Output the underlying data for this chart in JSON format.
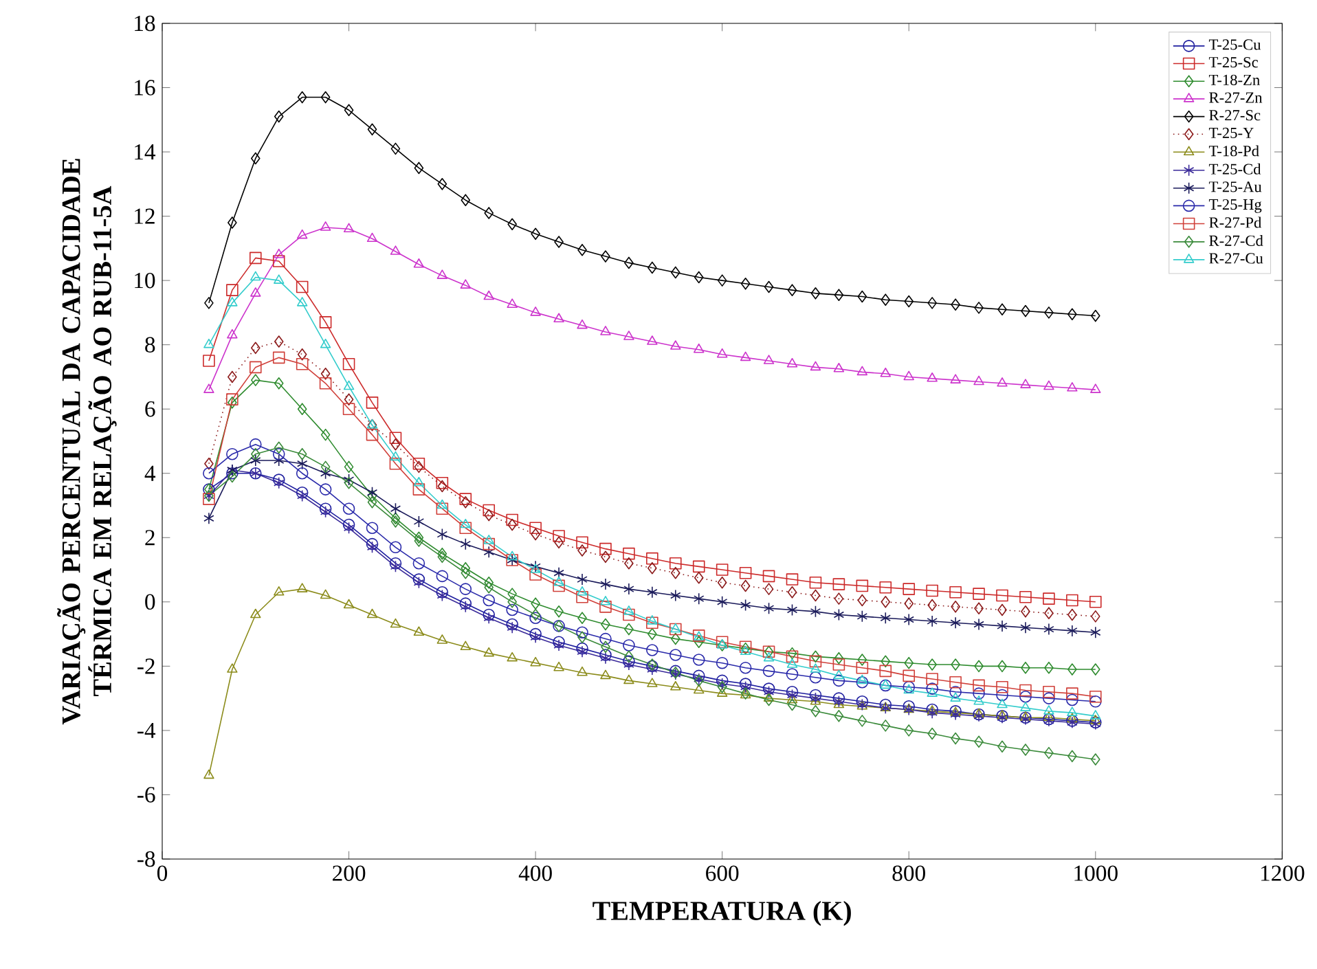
{
  "chart_data": {
    "type": "line",
    "xlabel": "TEMPERATURA (K)",
    "ylabel": "VARIAÇÃO PERCENTUAL DA CAPACIDADE TÉRMICA EM RELAÇÃO AO RUB-11-5A",
    "xlim": [
      0,
      1200
    ],
    "ylim": [
      -8,
      18
    ],
    "xticks": [
      0,
      200,
      400,
      600,
      800,
      1000,
      1200
    ],
    "yticks": [
      -8,
      -6,
      -4,
      -2,
      0,
      2,
      4,
      6,
      8,
      10,
      12,
      14,
      16,
      18
    ],
    "grid": false,
    "legend": "top right",
    "x": [
      50,
      75,
      100,
      125,
      150,
      175,
      200,
      225,
      250,
      275,
      300,
      325,
      350,
      375,
      400,
      425,
      450,
      475,
      500,
      525,
      550,
      575,
      600,
      625,
      650,
      675,
      700,
      725,
      750,
      775,
      800,
      825,
      850,
      875,
      900,
      925,
      950,
      975,
      1000
    ],
    "series": [
      {
        "name": "T-25-Cu",
        "color": "#1f1f9f",
        "marker": "circle",
        "values": [
          3.5,
          4.0,
          4.0,
          3.8,
          3.4,
          2.9,
          2.4,
          1.8,
          1.2,
          0.7,
          0.3,
          -0.05,
          -0.4,
          -0.7,
          -1.0,
          -1.25,
          -1.45,
          -1.65,
          -1.85,
          -2.0,
          -2.15,
          -2.3,
          -2.45,
          -2.55,
          -2.7,
          -2.8,
          -2.9,
          -3.0,
          -3.1,
          -3.2,
          -3.25,
          -3.35,
          -3.4,
          -3.5,
          -3.55,
          -3.6,
          -3.65,
          -3.7,
          -3.75
        ]
      },
      {
        "name": "T-25-Sc",
        "color": "#cc2a2a",
        "marker": "square",
        "values": [
          7.5,
          9.7,
          10.7,
          10.6,
          9.8,
          8.7,
          7.4,
          6.2,
          5.1,
          4.3,
          3.7,
          3.2,
          2.85,
          2.55,
          2.3,
          2.05,
          1.85,
          1.65,
          1.5,
          1.35,
          1.2,
          1.1,
          1.0,
          0.9,
          0.8,
          0.7,
          0.6,
          0.55,
          0.5,
          0.45,
          0.4,
          0.35,
          0.3,
          0.25,
          0.2,
          0.15,
          0.1,
          0.05,
          0.0
        ]
      },
      {
        "name": "T-18-Zn",
        "color": "#2e8b2e",
        "marker": "diamond",
        "values": [
          3.5,
          6.2,
          6.9,
          6.8,
          6.0,
          5.2,
          4.2,
          3.3,
          2.6,
          2.0,
          1.5,
          1.05,
          0.6,
          0.25,
          -0.05,
          -0.3,
          -0.5,
          -0.7,
          -0.85,
          -1.0,
          -1.15,
          -1.25,
          -1.35,
          -1.45,
          -1.55,
          -1.6,
          -1.7,
          -1.75,
          -1.8,
          -1.85,
          -1.9,
          -1.95,
          -1.95,
          -2.0,
          -2.0,
          -2.05,
          -2.05,
          -2.1,
          -2.1
        ]
      },
      {
        "name": "R-27-Zn",
        "color": "#cc33cc",
        "marker": "triangle",
        "values": [
          6.6,
          8.3,
          9.6,
          10.8,
          11.4,
          11.65,
          11.6,
          11.3,
          10.9,
          10.5,
          10.15,
          9.85,
          9.5,
          9.25,
          9.0,
          8.8,
          8.6,
          8.4,
          8.25,
          8.1,
          7.95,
          7.85,
          7.7,
          7.6,
          7.5,
          7.4,
          7.3,
          7.25,
          7.15,
          7.1,
          7.0,
          6.95,
          6.9,
          6.85,
          6.8,
          6.75,
          6.7,
          6.65,
          6.6
        ]
      },
      {
        "name": "R-27-Sc",
        "color": "#000000",
        "marker": "diamond",
        "values": [
          9.3,
          11.8,
          13.8,
          15.1,
          15.7,
          15.7,
          15.3,
          14.7,
          14.1,
          13.5,
          13.0,
          12.5,
          12.1,
          11.75,
          11.45,
          11.2,
          10.95,
          10.75,
          10.55,
          10.4,
          10.25,
          10.1,
          10.0,
          9.9,
          9.8,
          9.7,
          9.6,
          9.55,
          9.5,
          9.4,
          9.35,
          9.3,
          9.25,
          9.15,
          9.1,
          9.05,
          9.0,
          8.95,
          8.9
        ]
      },
      {
        "name": "T-25-Y",
        "color": "#8b1a1a",
        "marker": "diamond",
        "line_style": "dotted",
        "values": [
          4.3,
          7.0,
          7.9,
          8.1,
          7.7,
          7.1,
          6.3,
          5.5,
          4.9,
          4.2,
          3.6,
          3.1,
          2.7,
          2.4,
          2.1,
          1.85,
          1.6,
          1.4,
          1.2,
          1.05,
          0.9,
          0.75,
          0.6,
          0.5,
          0.4,
          0.3,
          0.2,
          0.1,
          0.05,
          0.0,
          -0.05,
          -0.1,
          -0.15,
          -0.2,
          -0.25,
          -0.3,
          -0.35,
          -0.4,
          -0.45
        ]
      },
      {
        "name": "T-18-Pd",
        "color": "#8b8b1a",
        "marker": "triangle",
        "values": [
          -5.4,
          -2.1,
          -0.4,
          0.3,
          0.4,
          0.2,
          -0.1,
          -0.4,
          -0.7,
          -0.95,
          -1.2,
          -1.4,
          -1.6,
          -1.75,
          -1.9,
          -2.05,
          -2.2,
          -2.3,
          -2.45,
          -2.55,
          -2.65,
          -2.75,
          -2.85,
          -2.9,
          -3.0,
          -3.05,
          -3.1,
          -3.2,
          -3.25,
          -3.3,
          -3.35,
          -3.4,
          -3.45,
          -3.5,
          -3.55,
          -3.6,
          -3.6,
          -3.65,
          -3.7
        ]
      },
      {
        "name": "T-25-Cd",
        "color": "#3a2a9a",
        "marker": "cross",
        "values": [
          3.3,
          4.1,
          4.0,
          3.7,
          3.3,
          2.8,
          2.3,
          1.7,
          1.1,
          0.6,
          0.2,
          -0.15,
          -0.5,
          -0.8,
          -1.1,
          -1.35,
          -1.55,
          -1.75,
          -1.95,
          -2.1,
          -2.25,
          -2.4,
          -2.55,
          -2.65,
          -2.8,
          -2.9,
          -3.0,
          -3.1,
          -3.2,
          -3.3,
          -3.35,
          -3.45,
          -3.5,
          -3.55,
          -3.6,
          -3.65,
          -3.7,
          -3.75,
          -3.8
        ]
      },
      {
        "name": "T-25-Au",
        "color": "#1a1a5a",
        "marker": "cross",
        "values": [
          2.6,
          4.1,
          4.4,
          4.4,
          4.3,
          4.0,
          3.8,
          3.4,
          2.9,
          2.5,
          2.1,
          1.8,
          1.55,
          1.3,
          1.1,
          0.9,
          0.7,
          0.55,
          0.4,
          0.3,
          0.2,
          0.1,
          0.0,
          -0.1,
          -0.2,
          -0.25,
          -0.3,
          -0.4,
          -0.45,
          -0.5,
          -0.55,
          -0.6,
          -0.65,
          -0.7,
          -0.75,
          -0.8,
          -0.85,
          -0.9,
          -0.95
        ]
      },
      {
        "name": "T-25-Hg",
        "color": "#2a2aaa",
        "marker": "circle",
        "values": [
          4.0,
          4.6,
          4.9,
          4.6,
          4.0,
          3.5,
          2.9,
          2.3,
          1.7,
          1.2,
          0.8,
          0.4,
          0.05,
          -0.25,
          -0.5,
          -0.75,
          -0.95,
          -1.15,
          -1.35,
          -1.5,
          -1.65,
          -1.8,
          -1.9,
          -2.05,
          -2.15,
          -2.25,
          -2.35,
          -2.45,
          -2.5,
          -2.6,
          -2.65,
          -2.7,
          -2.8,
          -2.85,
          -2.9,
          -2.95,
          -3.0,
          -3.05,
          -3.1
        ]
      },
      {
        "name": "R-27-Pd",
        "color": "#d0403a",
        "marker": "square",
        "values": [
          3.2,
          6.3,
          7.3,
          7.6,
          7.4,
          6.8,
          6.0,
          5.2,
          4.3,
          3.5,
          2.9,
          2.3,
          1.8,
          1.3,
          0.85,
          0.5,
          0.15,
          -0.15,
          -0.4,
          -0.65,
          -0.85,
          -1.05,
          -1.25,
          -1.4,
          -1.55,
          -1.7,
          -1.85,
          -1.95,
          -2.05,
          -2.15,
          -2.3,
          -2.4,
          -2.5,
          -2.6,
          -2.65,
          -2.75,
          -2.8,
          -2.85,
          -2.95
        ]
      },
      {
        "name": "R-27-Cd",
        "color": "#3a8a3a",
        "marker": "diamond",
        "values": [
          3.3,
          3.9,
          4.6,
          4.8,
          4.6,
          4.2,
          3.7,
          3.1,
          2.5,
          1.9,
          1.4,
          0.9,
          0.45,
          0.0,
          -0.4,
          -0.75,
          -1.1,
          -1.4,
          -1.7,
          -1.95,
          -2.2,
          -2.45,
          -2.65,
          -2.85,
          -3.05,
          -3.2,
          -3.4,
          -3.55,
          -3.7,
          -3.85,
          -4.0,
          -4.1,
          -4.25,
          -4.35,
          -4.5,
          -4.6,
          -4.7,
          -4.8,
          -4.9
        ]
      },
      {
        "name": "R-27-Cu",
        "color": "#33cccc",
        "marker": "triangle",
        "values": [
          8.0,
          9.3,
          10.1,
          10.0,
          9.3,
          8.0,
          6.7,
          5.5,
          4.5,
          3.7,
          3.0,
          2.4,
          1.9,
          1.4,
          1.0,
          0.6,
          0.3,
          0.0,
          -0.3,
          -0.6,
          -0.85,
          -1.1,
          -1.35,
          -1.55,
          -1.75,
          -1.95,
          -2.1,
          -2.3,
          -2.45,
          -2.6,
          -2.75,
          -2.85,
          -3.0,
          -3.1,
          -3.2,
          -3.3,
          -3.4,
          -3.45,
          -3.55
        ]
      }
    ]
  }
}
